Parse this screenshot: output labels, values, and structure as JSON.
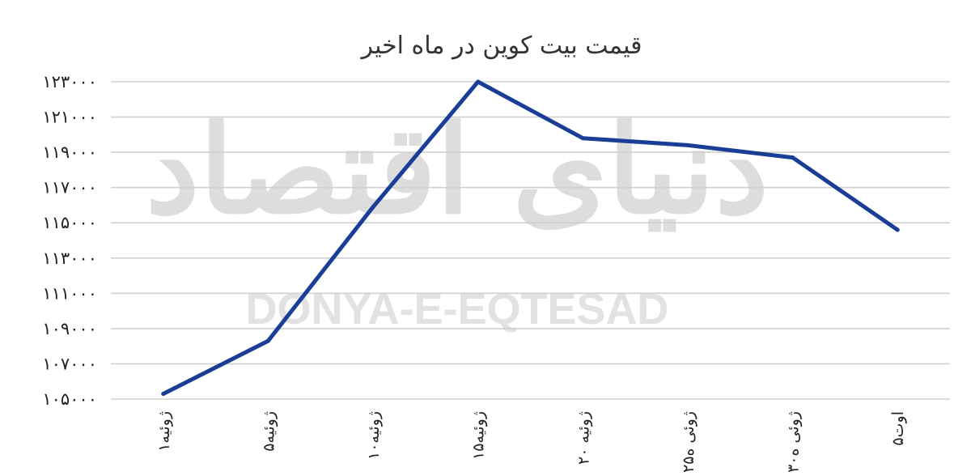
{
  "chart_data": {
    "type": "line",
    "title": "قیمت بیت کوین در ماه اخیر",
    "categories": [
      "۱ژوئیه",
      "۵ژوئیه",
      "۱۰ژوئیه",
      "۱۵ژوئیه",
      "۲۰ ژوئیه",
      "۲۵ژوئی ه",
      "۳۰ژوئی ه",
      "۵اوت"
    ],
    "series": [
      {
        "values": [
          105300,
          108300,
          115900,
          123000,
          119800,
          119400,
          118700,
          114600
        ]
      }
    ],
    "yticks": [
      "۱۲۳۰۰۰",
      "۱۲۱۰۰۰",
      "۱۱۹۰۰۰",
      "۱۱۷۰۰۰",
      "۱۱۵۰۰۰",
      "۱۱۳۰۰۰",
      "۱۱۱۰۰۰",
      "۱۰۹۰۰۰",
      "۱۰۷۰۰۰",
      "۱۰۵۰۰۰"
    ],
    "ylim": [
      105000,
      123000
    ],
    "grid": true,
    "legend": "none",
    "line_color": "#1a3d96"
  },
  "watermark": {
    "persian": "دنیای اقتصاد",
    "latin": "DONYA-E-EQTESAD"
  }
}
